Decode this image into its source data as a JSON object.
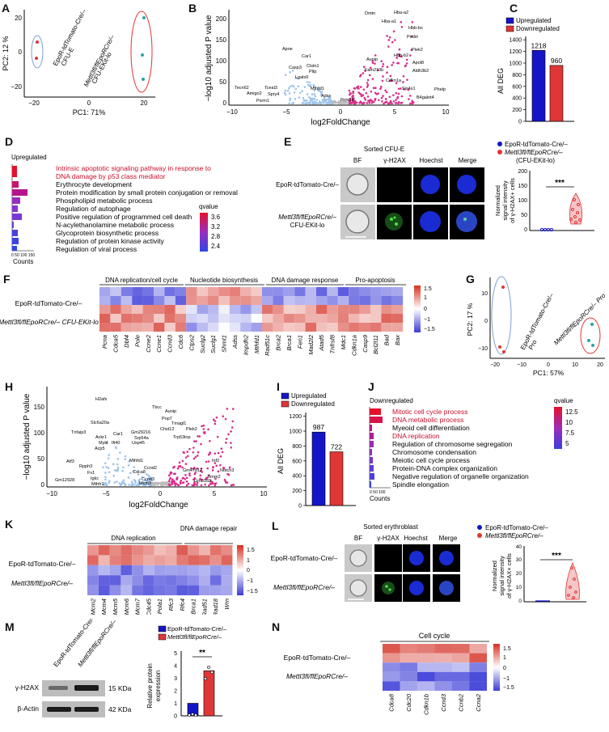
{
  "panels": {
    "A": {
      "label": "A",
      "xlabel": "PC1: 71%",
      "ylabel": "PC2: 12 %",
      "ticks_x": [
        "−20",
        "0",
        "20"
      ],
      "ticks_y": [
        "20",
        "0",
        "−20"
      ],
      "group1": "EpoR-tdTomato-Cre/–",
      "group1b": "CFU-E",
      "group2": "Mettl3fl/flEpoRCre/–",
      "group2b": "CFU-EKit-lo"
    },
    "B": {
      "label": "B",
      "xlabel": "log2FoldChange",
      "ylabel": "−log10 adjusted P value",
      "ticks_x": [
        "−10",
        "−5",
        "0",
        "5",
        "10"
      ],
      "ticks_y": [
        "0",
        "50",
        "100",
        "150",
        "200"
      ],
      "genes": [
        "Dmtn",
        "Hba-a2",
        "Hba-a1",
        "Hbb-bs",
        "Podxl",
        "Plek2",
        "Hbb-b2",
        "Apol8",
        "Aldh3b2",
        "Aunip",
        "Fam210b",
        "Cdkn1a",
        "Sjs4s1",
        "Phelp",
        "B4galnt4",
        "Apoe",
        "Car1",
        "Casp3",
        "Clstn1",
        "Lgals9",
        "Pltp",
        "Mthfd1",
        "Adss",
        "Tecn62",
        "Tceal3",
        "Amigo2",
        "Spry4",
        "Psrm1",
        "Rrm1b"
      ]
    },
    "C": {
      "label": "C",
      "ylabel": "All DEG",
      "legend": [
        "Upregulated",
        "Downregulated"
      ],
      "ticks_y": [
        "0",
        "200",
        "400",
        "600",
        "800",
        "1000",
        "1200",
        "1400"
      ],
      "values": [
        1218,
        960
      ]
    },
    "D": {
      "label": "D",
      "title": "Upregulated",
      "terms": [
        "Intrinsic apoptotic signaling pathway in response to",
        "DNA damage by p53 class mediator",
        "Erythrocyte development",
        "Protein modification by small protein conjugation or removal",
        "Phospholipid metabolic process",
        "Regulation of autophage",
        "Positive regulation of programmed cell death",
        "N-acylethanolamine metabolic process",
        "Glycoprotein biosynthetic process",
        "Regulation of protein kinase activity",
        "Regulation of viral process"
      ],
      "counts_label": "Counts",
      "counts_ticks": "0 50 100 150",
      "qvalue_label": "qvalue",
      "q_ticks": [
        "3.6",
        "3.2",
        "2.8",
        "2.4"
      ]
    },
    "E": {
      "label": "E",
      "title": "Sorted CFU-E",
      "cols": [
        "BF",
        "γ-H2AX",
        "Hoechst",
        "Merge"
      ],
      "row1": "EpoR-tdTomato-Cre/–",
      "row2": "Mettl3fl/flEpoRCre/–",
      "row2b": "CFU-EKit-lo",
      "legend": [
        "EpoR-tdTomato-Cre/–",
        "Mettl3fl/flEpoRCre/–",
        "(CFU-EKit-lo)"
      ],
      "ylabel": [
        "Normalized",
        "signal intensity",
        "of γ-H2AX+ cells"
      ],
      "ticks_y": [
        "0",
        "50",
        "100",
        "150",
        "200"
      ],
      "sig": "***"
    },
    "F": {
      "label": "F",
      "groups": [
        "DNA replication/cell cycle",
        "Nucleotide biosynthesis",
        "DNA damage response",
        "Pro-apoptosis"
      ],
      "row1": "EpoR-tdTomato-Cre/–",
      "row2": "Mettl3fl/flEpoRCre/– CFU-EKit-lo",
      "genes": [
        "Pcna",
        "Cdca5",
        "Dbf4",
        "Pole",
        "Ccne2",
        "Ccne1",
        "Ccnd3",
        "Cdc6",
        "Ctps2",
        "Suclg2",
        "Suclg1",
        "Shmt1",
        "Adss",
        "Impdh2",
        "Mthfd1",
        "Rad51c",
        "Brca2",
        "Brca1",
        "Fen1",
        "Mad2l2",
        "Atad5",
        "Tnfrsf8",
        "Mdc1",
        "Cdkn1a",
        "Casp9",
        "Bcl2l11",
        "Bad",
        "Bax"
      ],
      "scale": [
        "1.5",
        "1",
        "0",
        "−1",
        "−1.5"
      ]
    },
    "G": {
      "label": "G",
      "xlabel": "PC1: 57%",
      "ylabel": "PC2: 17 %",
      "ticks_x": [
        "−20",
        "−10",
        "0",
        "10",
        "20"
      ],
      "ticks_y": [
        "10",
        "0",
        "−10"
      ],
      "group1": "EpoR-tdTomato-Cre/–",
      "group1b": "Pro",
      "group2": "Mettl3fl/flEpoRCre/– Pro"
    },
    "H": {
      "label": "H",
      "xlabel": "log2FoldChange",
      "ylabel": "−log10 adjusted P value",
      "ticks_x": [
        "−10",
        "−5",
        "0",
        "5",
        "10"
      ],
      "ticks_y": [
        "0",
        "50",
        "100",
        "150"
      ],
      "genes": [
        "H2afx",
        "Slc6a20a",
        "Tnfaip3",
        "Ackr1",
        "Car1",
        "Myl4",
        "Ifi40",
        "Acp5",
        "Atf3",
        "Rpph3",
        "Fv1",
        "Igkc",
        "Mthfr1",
        "Gm12928",
        "Tbcc",
        "Aunip",
        "Pop7",
        "Tmagl1",
        "Chst12",
        "Plek2",
        "Trp53inp",
        "Inf2",
        "Gm47612",
        "Notch3",
        "Tenm2",
        "Gm29216",
        "Srp54a",
        "Usp45",
        "Mthfd1",
        "Cdca8",
        "Ccnd2",
        "Ccnd3",
        "Mcm3",
        "Gm3183"
      ]
    },
    "I": {
      "label": "I",
      "ylabel": "All DEG",
      "legend": [
        "Upregulated",
        "Downregulated"
      ],
      "ticks_y": [
        "0",
        "200",
        "400",
        "600",
        "800",
        "1000",
        "1200"
      ],
      "values": [
        987,
        722
      ]
    },
    "J": {
      "label": "J",
      "title": "Downregulated",
      "terms": [
        "Mitotic cell cycle process",
        "DNA metabolic process",
        "Myeoid cell differentiation",
        "DNA replication",
        "Regulation of chromosome segregation",
        "Chromosome condensation",
        "Meiotic cell cycle process",
        "Protein-DNA complex organization",
        "Negative regulation of organelle organization",
        "Spindle elongation"
      ],
      "counts_label": "Counts",
      "counts_ticks": "0 50 100",
      "qvalue_label": "qvalue",
      "q_ticks": [
        "12.5",
        "10",
        "7.5",
        "5"
      ]
    },
    "K": {
      "label": "K",
      "groups": [
        "DNA replication",
        "DNA damage repair"
      ],
      "row1": "EpoR-tdTomato-Cre/–",
      "row2": "Mettl3fl/flEpoRCre/–",
      "genes": [
        "Mcm2",
        "Mcm4",
        "Mcm5",
        "Mcm6",
        "Mcm7",
        "Cdc45",
        "Pola1",
        "Rfc3",
        "Rfc4",
        "Brca1",
        "Rad51",
        "Rad18",
        "Wrn"
      ],
      "scale": [
        "1.5",
        "1",
        "0",
        "−1",
        "−1.5"
      ]
    },
    "L": {
      "label": "L",
      "title": "Sorted erythroblast",
      "cols": [
        "BF",
        "γ-H2AX",
        "Hoechst",
        "Merge"
      ],
      "row1": "EpoR-tdTomato-Cre/–",
      "row2": "Mettl3fl/flEpoRCre/–",
      "legend": [
        "EpoR-tdTomato-Cre/–",
        "Mettl3fl/flEpoRCre/–"
      ],
      "ylabel": [
        "Normalized",
        "signal intensity",
        "of γ-H2AX+ cells"
      ],
      "ticks_y": [
        "0",
        "10",
        "20",
        "30",
        "40"
      ],
      "sig": "***"
    },
    "M": {
      "label": "M",
      "lanes": [
        "EpoR-tdTomato-Cre/–",
        "Mettl3fl/flEpoRCre/–"
      ],
      "bands": [
        "γ-H2AX",
        "β-Actin"
      ],
      "sizes": [
        "15 KDa",
        "42 KDa"
      ],
      "legend": [
        "EpoR-tdTomato-Cre/–",
        "Mettl3fl/flEpoRCre/–"
      ],
      "ylabel": [
        "Relative protein",
        "expression"
      ],
      "ticks_y": [
        "0",
        "1",
        "2",
        "3",
        "4",
        "5"
      ],
      "values": [
        1.0,
        3.6
      ],
      "sig": "**"
    },
    "N": {
      "label": "N",
      "title": "Cell cycle",
      "row1": "EpoR-tdTomato-Cre/–",
      "row2": "Mettl3fl/flEpoRCre/–",
      "genes": [
        "Cdca8",
        "Cdc20",
        "Cdkn1b",
        "Ccnd3",
        "Ccnb2",
        "Ccna2"
      ],
      "scale": [
        "1.5",
        "1",
        "0",
        "−1",
        "−1.5"
      ]
    }
  },
  "colors": {
    "up": "#1515c8",
    "down": "#e03636",
    "red_text": "#c8102e",
    "pink": "#d6308a",
    "lightblue": "#9ec3ea"
  }
}
